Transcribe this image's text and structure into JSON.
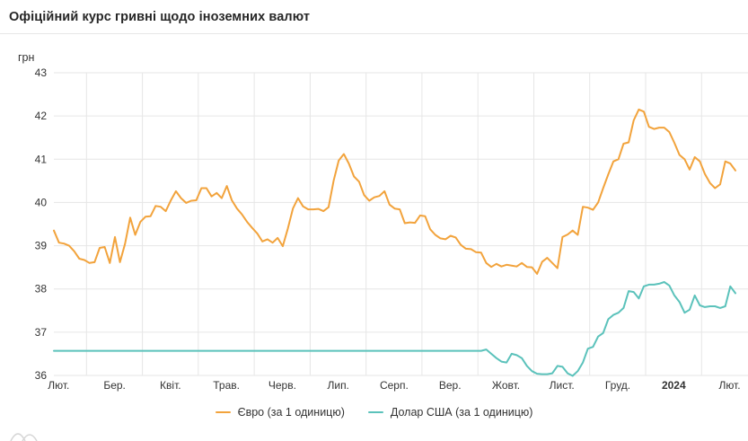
{
  "header": {
    "title": "Офіційний курс гривні щодо іноземних валют"
  },
  "legend": {
    "items": [
      {
        "label": "Євро (за 1 одиницю)",
        "color": "#f2a33c"
      },
      {
        "label": "Долар США (за 1 одиницю)",
        "color": "#5bc2bb"
      }
    ]
  },
  "chart_data": {
    "type": "line",
    "title": "Офіційний курс гривні щодо іноземних валют",
    "ylabel": "грн",
    "xlabel": "",
    "ylim": [
      36,
      43
    ],
    "y_ticks": [
      43,
      42,
      41,
      40,
      39,
      38,
      37,
      36
    ],
    "x_labels": [
      "Лют.",
      "Бер.",
      "Квіт.",
      "Трав.",
      "Черв.",
      "Лип.",
      "Серп.",
      "Вер.",
      "Жовт.",
      "Лист.",
      "Груд.",
      "2024",
      "Лют."
    ],
    "x_bold_label": "2024",
    "x_note": "points uniformly spaced, early Feb 2023 to early Feb 2024 (daily official NBU rates)",
    "grid": true,
    "grid_color": "#e6e6e6",
    "axis_label_color": "#333333",
    "legend_position": "bottom",
    "series": [
      {
        "name": "Євро (за 1 одиницю)",
        "color": "#f2a33c",
        "values": [
          39.35,
          39.07,
          39.05,
          39.0,
          38.87,
          38.7,
          38.67,
          38.6,
          38.62,
          38.95,
          38.97,
          38.6,
          39.2,
          38.62,
          39.05,
          39.65,
          39.25,
          39.55,
          39.67,
          39.68,
          39.92,
          39.9,
          39.8,
          40.05,
          40.26,
          40.1,
          39.99,
          40.04,
          40.05,
          40.33,
          40.33,
          40.14,
          40.22,
          40.1,
          40.38,
          40.05,
          39.86,
          39.72,
          39.55,
          39.41,
          39.28,
          39.1,
          39.15,
          39.07,
          39.18,
          38.99,
          39.4,
          39.86,
          40.1,
          39.91,
          39.84,
          39.84,
          39.85,
          39.8,
          39.89,
          40.5,
          40.97,
          41.12,
          40.9,
          40.6,
          40.48,
          40.17,
          40.04,
          40.12,
          40.15,
          40.26,
          39.95,
          39.86,
          39.84,
          39.52,
          39.54,
          39.53,
          39.7,
          39.68,
          39.38,
          39.25,
          39.17,
          39.15,
          39.23,
          39.19,
          39.02,
          38.93,
          38.92,
          38.85,
          38.84,
          38.6,
          38.51,
          38.58,
          38.52,
          38.56,
          38.54,
          38.52,
          38.6,
          38.51,
          38.5,
          38.35,
          38.63,
          38.72,
          38.6,
          38.48,
          39.2,
          39.26,
          39.35,
          39.25,
          39.9,
          39.88,
          39.83,
          40.0,
          40.33,
          40.65,
          40.95,
          41.0,
          41.36,
          41.39,
          41.9,
          42.15,
          42.1,
          41.75,
          41.7,
          41.73,
          41.73,
          41.63,
          41.38,
          41.1,
          41.0,
          40.76,
          41.05,
          40.95,
          40.66,
          40.45,
          40.33,
          40.42,
          40.95,
          40.9,
          40.74
        ]
      },
      {
        "name": "Долар США (за 1 одиницю)",
        "color": "#5bc2bb",
        "values": [
          36.57,
          36.57,
          36.57,
          36.57,
          36.57,
          36.57,
          36.57,
          36.57,
          36.57,
          36.57,
          36.57,
          36.57,
          36.57,
          36.57,
          36.57,
          36.57,
          36.57,
          36.57,
          36.57,
          36.57,
          36.57,
          36.57,
          36.57,
          36.57,
          36.57,
          36.57,
          36.57,
          36.57,
          36.57,
          36.57,
          36.57,
          36.57,
          36.57,
          36.57,
          36.57,
          36.57,
          36.57,
          36.57,
          36.57,
          36.57,
          36.57,
          36.57,
          36.57,
          36.57,
          36.57,
          36.57,
          36.57,
          36.57,
          36.57,
          36.57,
          36.57,
          36.57,
          36.57,
          36.57,
          36.57,
          36.57,
          36.57,
          36.57,
          36.57,
          36.57,
          36.57,
          36.57,
          36.57,
          36.57,
          36.57,
          36.57,
          36.57,
          36.57,
          36.57,
          36.57,
          36.57,
          36.57,
          36.57,
          36.57,
          36.57,
          36.57,
          36.57,
          36.57,
          36.57,
          36.57,
          36.57,
          36.57,
          36.57,
          36.57,
          36.57,
          36.6,
          36.5,
          36.4,
          36.32,
          36.3,
          36.5,
          36.47,
          36.4,
          36.22,
          36.1,
          36.04,
          36.03,
          36.03,
          36.05,
          36.22,
          36.2,
          36.05,
          35.99,
          36.1,
          36.3,
          36.62,
          36.66,
          36.9,
          36.98,
          37.3,
          37.4,
          37.45,
          37.56,
          37.95,
          37.93,
          37.78,
          38.06,
          38.1,
          38.1,
          38.12,
          38.16,
          38.08,
          37.85,
          37.7,
          37.45,
          37.52,
          37.85,
          37.62,
          37.58,
          37.6,
          37.6,
          37.56,
          37.6,
          38.06,
          37.9
        ]
      }
    ]
  }
}
